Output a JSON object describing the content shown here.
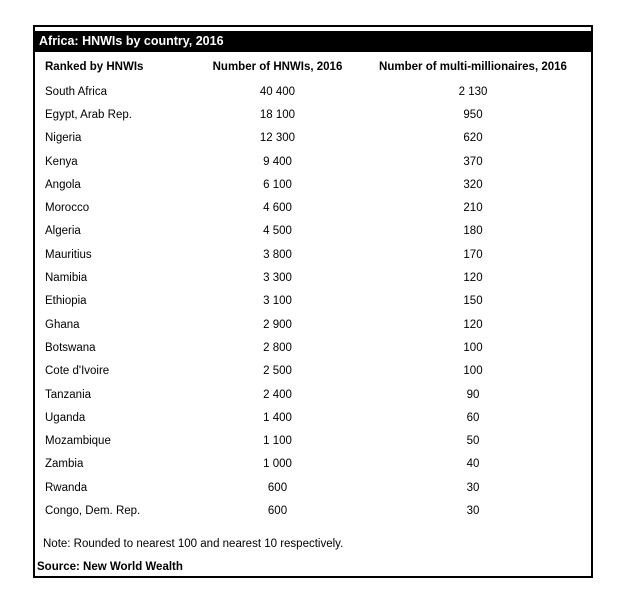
{
  "table": {
    "title": "Africa: HNWIs by country, 2016",
    "columns": {
      "country": "Ranked by HNWIs",
      "hnwis": "Number of HNWIs, 2016",
      "multi": "Number of multi-millionaires, 2016"
    },
    "rows": [
      {
        "country": "South Africa",
        "hnwis": "40 400",
        "multi": "2 130"
      },
      {
        "country": "Egypt, Arab Rep.",
        "hnwis": "18 100",
        "multi": "950"
      },
      {
        "country": "Nigeria",
        "hnwis": "12 300",
        "multi": "620"
      },
      {
        "country": "Kenya",
        "hnwis": "9 400",
        "multi": "370"
      },
      {
        "country": "Angola",
        "hnwis": "6 100",
        "multi": "320"
      },
      {
        "country": "Morocco",
        "hnwis": "4 600",
        "multi": "210"
      },
      {
        "country": "Algeria",
        "hnwis": "4 500",
        "multi": "180"
      },
      {
        "country": "Mauritius",
        "hnwis": "3 800",
        "multi": "170"
      },
      {
        "country": "Namibia",
        "hnwis": "3 300",
        "multi": "120"
      },
      {
        "country": "Ethiopia",
        "hnwis": "3 100",
        "multi": "150"
      },
      {
        "country": "Ghana",
        "hnwis": "2 900",
        "multi": "120"
      },
      {
        "country": "Botswana",
        "hnwis": "2 800",
        "multi": "100"
      },
      {
        "country": "Cote d'Ivoire",
        "hnwis": "2 500",
        "multi": "100"
      },
      {
        "country": "Tanzania",
        "hnwis": "2 400",
        "multi": "90"
      },
      {
        "country": "Uganda",
        "hnwis": "1 400",
        "multi": "60"
      },
      {
        "country": "Mozambique",
        "hnwis": "1 100",
        "multi": "50"
      },
      {
        "country": "Zambia",
        "hnwis": "1 000",
        "multi": "40"
      },
      {
        "country": "Rwanda",
        "hnwis": "600",
        "multi": "30"
      },
      {
        "country": "Congo, Dem. Rep.",
        "hnwis": "600",
        "multi": "30"
      }
    ],
    "note": "Note: Rounded to nearest 100 and nearest 10 respectively.",
    "source": "Source: New World Wealth"
  },
  "colors": {
    "title_bar_background": "#000000",
    "title_bar_text": "#ffffff",
    "border": "#000000",
    "text": "#000000",
    "background": "#ffffff"
  },
  "chart_data": {
    "type": "table",
    "title": "Africa: HNWIs by country, 2016",
    "columns": [
      "Ranked by HNWIs",
      "Number of HNWIs, 2016",
      "Number of multi-millionaires, 2016"
    ],
    "rows": [
      [
        "South Africa",
        40400,
        2130
      ],
      [
        "Egypt, Arab Rep.",
        18100,
        950
      ],
      [
        "Nigeria",
        12300,
        620
      ],
      [
        "Kenya",
        9400,
        370
      ],
      [
        "Angola",
        6100,
        320
      ],
      [
        "Morocco",
        4600,
        210
      ],
      [
        "Algeria",
        4500,
        180
      ],
      [
        "Mauritius",
        3800,
        170
      ],
      [
        "Namibia",
        3300,
        120
      ],
      [
        "Ethiopia",
        3100,
        150
      ],
      [
        "Ghana",
        2900,
        120
      ],
      [
        "Botswana",
        2800,
        100
      ],
      [
        "Cote d'Ivoire",
        2500,
        100
      ],
      [
        "Tanzania",
        2400,
        90
      ],
      [
        "Uganda",
        1400,
        60
      ],
      [
        "Mozambique",
        1100,
        50
      ],
      [
        "Zambia",
        1000,
        40
      ],
      [
        "Rwanda",
        600,
        30
      ],
      [
        "Congo, Dem. Rep.",
        600,
        30
      ]
    ],
    "note": "Note: Rounded to nearest 100 and nearest 10 respectively.",
    "source": "Source: New World Wealth",
    "number_format": "space thousands separator"
  }
}
